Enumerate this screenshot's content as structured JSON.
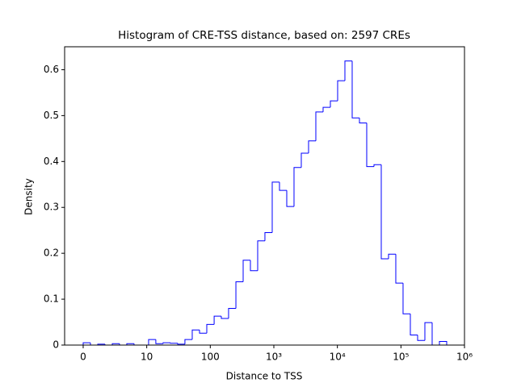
{
  "chart_data": {
    "type": "histogram",
    "title": "Histogram of CRE-TSS distance, based on: 2597 CREs",
    "x_label": "Distance to TSS",
    "y_label": "Density",
    "xscale": "symlog",
    "linthresh": 10,
    "color": "#0000ff",
    "bins": [
      0,
      1.14,
      2.29,
      3.43,
      4.58,
      5.72,
      6.86,
      8.01,
      9.15,
      10.7,
      13.9,
      18.1,
      23.6,
      30.7,
      39.9,
      52.0,
      67.7,
      88.1,
      115,
      149,
      194,
      253,
      329,
      428,
      557,
      724,
      943,
      1227,
      1597,
      2078,
      2704,
      3519,
      4580,
      5960,
      7757,
      10093,
      13135,
      17093,
      22246,
      28950,
      37670,
      49020,
      63800,
      83020,
      108000,
      140600,
      183000,
      238100,
      309900,
      403300,
      524800
    ],
    "values": [
      0.005,
      0,
      0.002,
      0,
      0.003,
      0,
      0.003,
      0,
      0,
      0.012,
      0.003,
      0.005,
      0.004,
      0.002,
      0.012,
      0.033,
      0.026,
      0.045,
      0.063,
      0.058,
      0.08,
      0.138,
      0.185,
      0.162,
      0.227,
      0.245,
      0.355,
      0.337,
      0.302,
      0.387,
      0.418,
      0.445,
      0.508,
      0.518,
      0.532,
      0.576,
      0.619,
      0.495,
      0.484,
      0.389,
      0.393,
      0.188,
      0.198,
      0.135,
      0.068,
      0.022,
      0.01,
      0.049,
      0,
      0.008
    ],
    "xlim": [
      -2.92,
      1000000
    ],
    "xticks": [
      0,
      10,
      100,
      {
        "value": 1000,
        "label": "10³"
      },
      {
        "value": 10000,
        "label": "10⁴"
      },
      {
        "value": 100000,
        "label": "10⁵"
      },
      {
        "value": 1000000,
        "label": "10⁶"
      }
    ],
    "ylim": [
      0,
      0.65
    ],
    "yticks": [
      0.0,
      0.1,
      0.2,
      0.3,
      0.4,
      0.5,
      0.6
    ]
  }
}
